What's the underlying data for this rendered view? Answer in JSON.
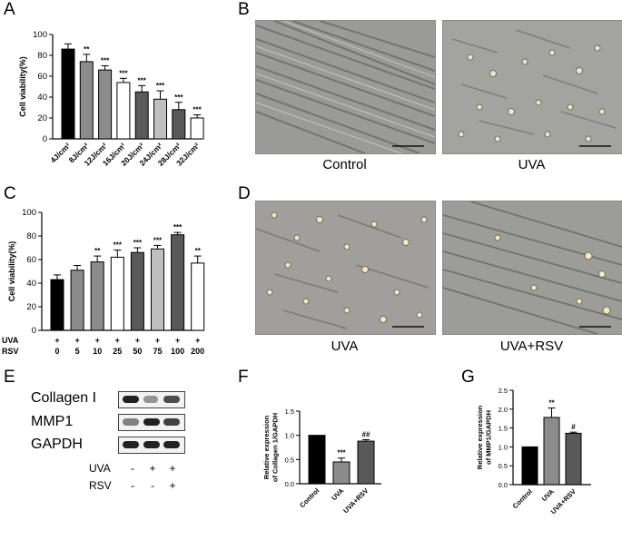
{
  "panels": {
    "a": "A",
    "b": "B",
    "c": "C",
    "d": "D",
    "e": "E",
    "f": "F",
    "g": "G"
  },
  "micrographs": {
    "b_left_caption": "Control",
    "b_right_caption": "UVA",
    "d_left_caption": "UVA",
    "d_right_caption": "UVA+RSV"
  },
  "colors": {
    "black": "#000000",
    "dark_gray": "#595959",
    "mid_gray": "#8c8c8c",
    "light_gray": "#bfbfbf",
    "white": "#ffffff"
  },
  "western_blot": {
    "proteins": [
      "Collagen I",
      "MMP1",
      "GAPDH"
    ],
    "treatment_rows": [
      {
        "label": "UVA",
        "signs": [
          "-",
          "+",
          "+"
        ]
      },
      {
        "label": "RSV",
        "signs": [
          "-",
          "-",
          "+"
        ]
      }
    ]
  },
  "chart_data": [
    {
      "id": "A",
      "type": "bar",
      "ylabel": "Cell viability(%)",
      "xlabel": "",
      "ylim": [
        0,
        100
      ],
      "yticks": [
        0,
        20,
        40,
        60,
        80,
        100
      ],
      "categories": [
        "4J/cm²",
        "8J/cm²",
        "12J/cm²",
        "16J/cm²",
        "20J/cm²",
        "24J/cm²",
        "28J/cm²",
        "32J/cm²"
      ],
      "values": [
        86,
        74,
        66,
        54,
        45,
        38,
        28,
        20
      ],
      "errors": [
        5,
        7,
        4,
        4,
        6,
        8,
        7,
        3
      ],
      "significance": [
        "",
        "**",
        "***",
        "***",
        "***",
        "***",
        "***",
        "***"
      ],
      "fills": [
        "black",
        "mid_gray",
        "mid_gray",
        "white",
        "dark_gray",
        "light_gray",
        "dark_gray",
        "white"
      ]
    },
    {
      "id": "C",
      "type": "bar",
      "ylabel": "Cell viability(%)",
      "xlabel": "",
      "ylim": [
        0,
        100
      ],
      "yticks": [
        0,
        20,
        40,
        60,
        80,
        100
      ],
      "row_labels": [
        "UVA",
        "RSV"
      ],
      "categories": [
        "0",
        "5",
        "10",
        "25",
        "50",
        "75",
        "100",
        "200"
      ],
      "uva": [
        "+",
        "+",
        "+",
        "+",
        "+",
        "+",
        "+",
        "+"
      ],
      "values": [
        43,
        51,
        58,
        62,
        66,
        69,
        81,
        57
      ],
      "errors": [
        4,
        4,
        5,
        6,
        4,
        3,
        2,
        6
      ],
      "significance": [
        "",
        "",
        "**",
        "***",
        "***",
        "***",
        "***",
        "**"
      ],
      "fills": [
        "black",
        "mid_gray",
        "mid_gray",
        "white",
        "dark_gray",
        "light_gray",
        "dark_gray",
        "white"
      ]
    },
    {
      "id": "F",
      "type": "bar",
      "ylabel": "Relative expression of Collagen 1/GAPDH",
      "xlabel": "",
      "ylim": [
        0,
        1.5
      ],
      "yticks": [
        0.0,
        0.5,
        1.0,
        1.5
      ],
      "categories": [
        "Control",
        "UVA",
        "UVA+RSV"
      ],
      "values": [
        1.0,
        0.45,
        0.88
      ],
      "errors": [
        0,
        0.08,
        0.03
      ],
      "significance": [
        "",
        "***",
        "##"
      ],
      "fills": [
        "black",
        "mid_gray",
        "dark_gray"
      ]
    },
    {
      "id": "G",
      "type": "bar",
      "ylabel": "Relative expression of MMP1/GAPDH",
      "xlabel": "",
      "ylim": [
        0,
        2.5
      ],
      "yticks": [
        0.0,
        0.5,
        1.0,
        1.5,
        2.0,
        2.5
      ],
      "categories": [
        "Control",
        "UVA",
        "UVA+RSV"
      ],
      "values": [
        1.0,
        1.78,
        1.36
      ],
      "errors": [
        0,
        0.25,
        0.03
      ],
      "significance": [
        "",
        "**",
        "#"
      ],
      "fills": [
        "black",
        "mid_gray",
        "dark_gray"
      ]
    }
  ]
}
